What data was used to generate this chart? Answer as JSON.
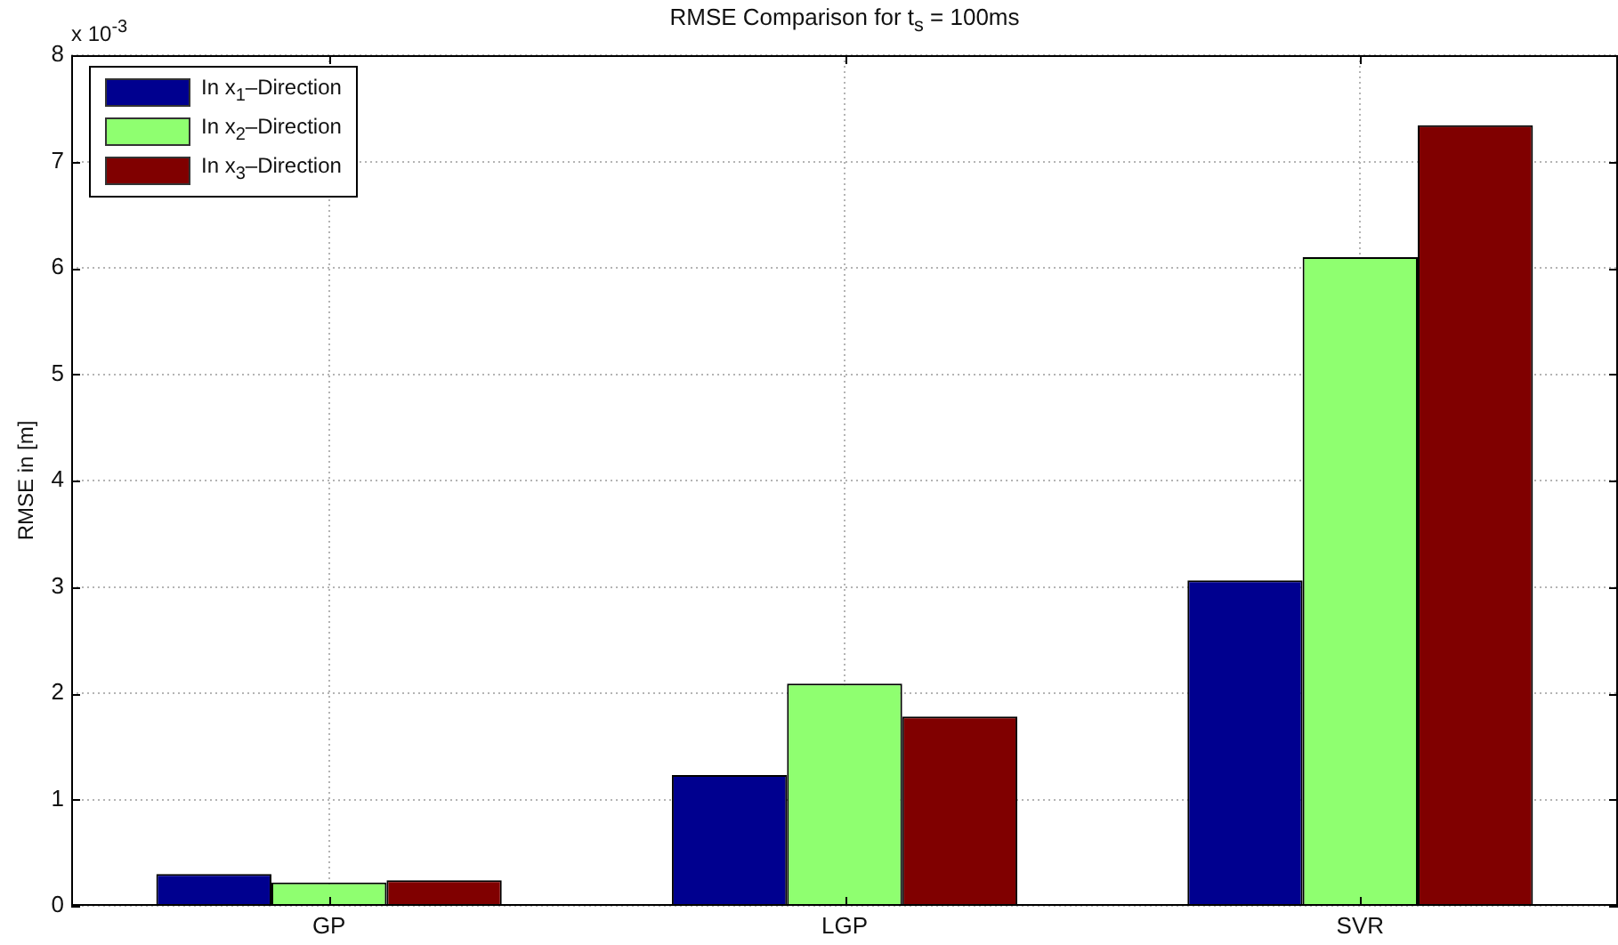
{
  "chart_data": {
    "type": "bar",
    "title": "RMSE Comparison for t$_{s}$ = 100ms",
    "ylabel": "RMSE in [m]",
    "categories": [
      "GP",
      "LGP",
      "SVR"
    ],
    "series": [
      {
        "name": "In x$_{1}$–Direction",
        "color": "#00008f",
        "values": [
          0.3,
          1.23,
          3.06
        ]
      },
      {
        "name": "In x$_{2}$–Direction",
        "color": "#8fff70",
        "values": [
          0.22,
          2.09,
          6.1
        ]
      },
      {
        "name": "In x$_{3}$–Direction",
        "color": "#800000",
        "values": [
          0.24,
          1.78,
          7.34
        ]
      }
    ],
    "ylim": [
      0,
      8
    ],
    "yticks": [
      0,
      1,
      2,
      3,
      4,
      5,
      6,
      7,
      8
    ],
    "grid": true,
    "legend": "top left",
    "annotations": [
      "x 10$^{-3}$"
    ]
  }
}
